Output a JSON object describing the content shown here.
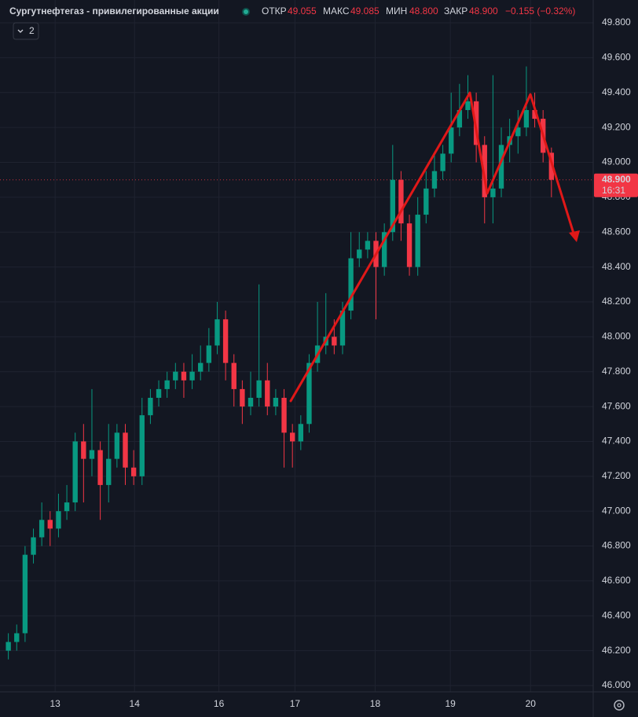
{
  "chart_data": {
    "type": "candlestick",
    "title": "Сургутнефтегаз - привилегированные акции",
    "header": {
      "open_label": "ОТКР",
      "open": "49.055",
      "high_label": "МАКС",
      "high": "49.085",
      "low_label": "МИН",
      "low": "48.800",
      "close_label": "ЗАКР",
      "close": "48.900",
      "change": "−0.155 (−0.32%)"
    },
    "indicator_count": "2",
    "x": [
      0,
      1,
      2,
      3,
      4,
      5,
      6,
      7,
      8,
      9,
      10,
      11,
      12,
      13,
      14,
      15,
      16,
      17,
      18,
      19,
      20,
      21,
      22,
      23,
      24,
      25,
      26,
      27,
      28,
      29,
      30,
      31,
      32,
      33,
      34,
      35,
      36,
      37,
      38,
      39,
      40,
      41,
      42,
      43,
      44,
      45,
      46,
      47,
      48,
      49,
      50,
      51,
      52,
      53,
      54,
      55,
      56,
      57,
      58,
      59,
      60,
      61,
      62,
      63,
      64,
      65
    ],
    "open": [
      46.2,
      46.25,
      46.3,
      46.75,
      46.85,
      46.95,
      46.9,
      47.0,
      47.05,
      47.4,
      47.3,
      47.35,
      47.15,
      47.3,
      47.45,
      47.25,
      47.2,
      47.55,
      47.65,
      47.7,
      47.75,
      47.8,
      47.75,
      47.8,
      47.85,
      47.95,
      48.1,
      47.85,
      47.7,
      47.6,
      47.65,
      47.75,
      47.6,
      47.65,
      47.45,
      47.4,
      47.5,
      47.85,
      47.95,
      48.0,
      47.95,
      48.15,
      48.45,
      48.5,
      48.55,
      48.4,
      48.6,
      48.9,
      48.65,
      48.4,
      48.7,
      48.85,
      48.95,
      49.05,
      49.2,
      49.3,
      49.35,
      49.1,
      48.8,
      48.85,
      49.1,
      49.15,
      49.2,
      49.3,
      49.25,
      49.055
    ],
    "high": [
      46.3,
      46.35,
      46.8,
      46.9,
      47.05,
      47.0,
      47.1,
      47.15,
      47.45,
      47.5,
      47.7,
      47.4,
      47.5,
      47.5,
      47.5,
      47.35,
      47.65,
      47.7,
      47.75,
      47.8,
      47.85,
      47.85,
      47.9,
      47.95,
      48.05,
      48.2,
      48.15,
      47.9,
      47.75,
      47.8,
      48.3,
      47.85,
      47.7,
      47.7,
      47.5,
      47.55,
      47.9,
      48.2,
      48.25,
      48.1,
      48.2,
      48.6,
      48.6,
      48.6,
      48.6,
      48.65,
      49.1,
      48.95,
      48.7,
      48.8,
      48.95,
      49.05,
      49.1,
      49.4,
      49.45,
      49.5,
      49.4,
      49.15,
      49.5,
      49.2,
      49.25,
      49.3,
      49.55,
      49.4,
      49.3,
      49.085
    ],
    "low": [
      46.15,
      46.2,
      46.25,
      46.7,
      46.8,
      46.8,
      46.85,
      46.95,
      47.0,
      47.05,
      47.2,
      46.95,
      47.05,
      47.25,
      47.15,
      47.15,
      47.15,
      47.5,
      47.6,
      47.65,
      47.7,
      47.65,
      47.7,
      47.75,
      47.8,
      47.9,
      47.75,
      47.6,
      47.5,
      47.55,
      47.6,
      47.55,
      47.55,
      47.25,
      47.25,
      47.35,
      47.45,
      47.8,
      47.9,
      47.9,
      47.9,
      48.1,
      48.4,
      48.45,
      48.1,
      48.35,
      48.55,
      48.55,
      48.35,
      48.35,
      48.65,
      48.8,
      48.9,
      49.0,
      49.15,
      49.25,
      49.0,
      48.65,
      48.65,
      48.8,
      49.0,
      49.05,
      49.15,
      49.2,
      49.0,
      48.8
    ],
    "close": [
      46.25,
      46.3,
      46.75,
      46.85,
      46.95,
      46.9,
      47.0,
      47.05,
      47.4,
      47.3,
      47.35,
      47.15,
      47.3,
      47.45,
      47.25,
      47.2,
      47.55,
      47.65,
      47.7,
      47.75,
      47.8,
      47.75,
      47.8,
      47.85,
      47.95,
      48.1,
      47.85,
      47.7,
      47.6,
      47.65,
      47.75,
      47.6,
      47.65,
      47.45,
      47.4,
      47.5,
      47.85,
      47.95,
      48.0,
      47.95,
      48.15,
      48.45,
      48.5,
      48.55,
      48.4,
      48.6,
      48.9,
      48.65,
      48.4,
      48.7,
      48.85,
      48.95,
      49.05,
      49.2,
      49.3,
      49.35,
      49.1,
      48.8,
      48.85,
      49.1,
      49.15,
      49.2,
      49.3,
      49.25,
      49.055,
      48.9
    ],
    "up_color": "#089981",
    "down_color": "#f23645",
    "xlim": [
      -1,
      70
    ],
    "xticks": [
      {
        "value": 5.6,
        "label": "13"
      },
      {
        "value": 15.1,
        "label": "14"
      },
      {
        "value": 25.2,
        "label": "16"
      },
      {
        "value": 34.3,
        "label": "17"
      },
      {
        "value": 43.9,
        "label": "18"
      },
      {
        "value": 52.9,
        "label": "19"
      },
      {
        "value": 62.5,
        "label": "20"
      }
    ],
    "ylim": [
      45.964,
      49.931
    ],
    "yticks": [
      {
        "value": 46.0,
        "label": "46.000"
      },
      {
        "value": 46.2,
        "label": "46.200"
      },
      {
        "value": 46.4,
        "label": "46.400"
      },
      {
        "value": 46.6,
        "label": "46.600"
      },
      {
        "value": 46.8,
        "label": "46.800"
      },
      {
        "value": 47.0,
        "label": "47.000"
      },
      {
        "value": 47.2,
        "label": "47.200"
      },
      {
        "value": 47.4,
        "label": "47.400"
      },
      {
        "value": 47.6,
        "label": "47.600"
      },
      {
        "value": 47.8,
        "label": "47.800"
      },
      {
        "value": 48.0,
        "label": "48.000"
      },
      {
        "value": 48.2,
        "label": "48.200"
      },
      {
        "value": 48.4,
        "label": "48.400"
      },
      {
        "value": 48.6,
        "label": "48.600"
      },
      {
        "value": 48.8,
        "label": "48.800"
      },
      {
        "value": 49.0,
        "label": "49.000"
      },
      {
        "value": 49.2,
        "label": "49.200"
      },
      {
        "value": 49.4,
        "label": "49.400"
      },
      {
        "value": 49.6,
        "label": "49.600"
      },
      {
        "value": 49.8,
        "label": "49.800"
      }
    ],
    "last_price": {
      "value": 48.9,
      "label": "48.900",
      "time": "16:31"
    },
    "grid": true
  }
}
